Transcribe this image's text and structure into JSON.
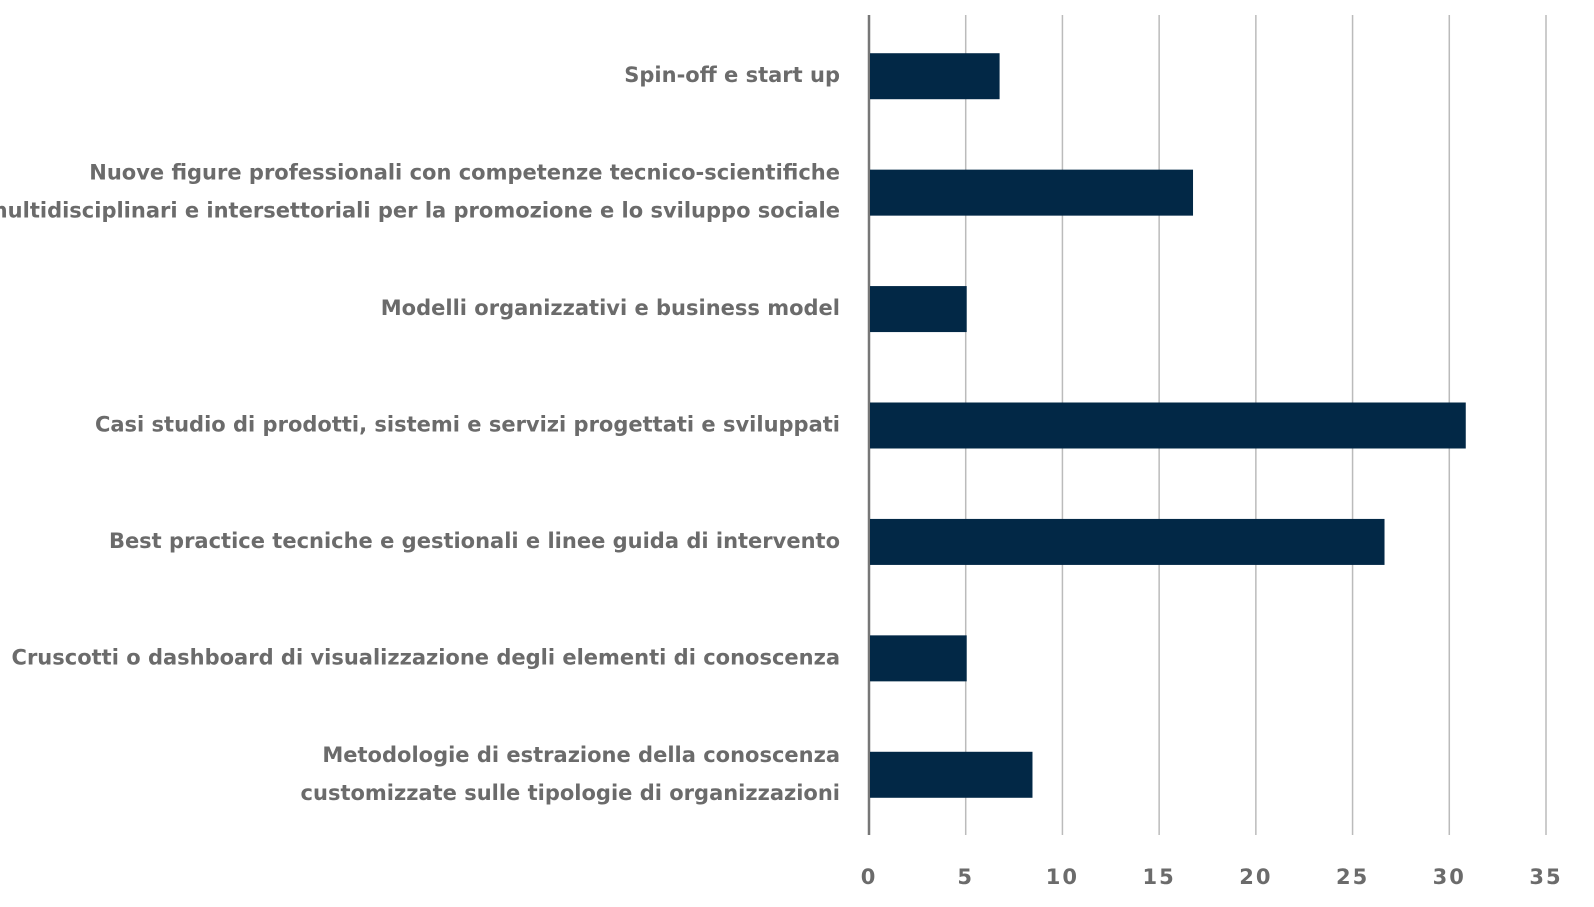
{
  "chart_data": {
    "type": "barh",
    "categories": [
      [
        "Spin-off e start up"
      ],
      [
        "Nuove figure professionali con competenze tecnico-scientifiche",
        "multidisciplinari e intersettoriali per la promozione e lo sviluppo sociale"
      ],
      [
        "Modelli organizzativi e business model"
      ],
      [
        "Casi studio di prodotti, sistemi e servizi progettati e sviluppati"
      ],
      [
        "Best practice tecniche e gestionali e linee guida di intervento"
      ],
      [
        "Cruscotti o dashboard di visualizzazione degli elementi di conoscenza"
      ],
      [
        "Metodologie di estrazione della conoscenza",
        "customizzate sulle tipologie di organizzazioni"
      ]
    ],
    "values": [
      6.7,
      16.7,
      5,
      30.8,
      26.6,
      5,
      8.4
    ],
    "color": "#022846",
    "xlim": [
      0,
      35
    ],
    "xticks": [
      0,
      5,
      10,
      15,
      20,
      25,
      30,
      35
    ],
    "grid": true
  }
}
